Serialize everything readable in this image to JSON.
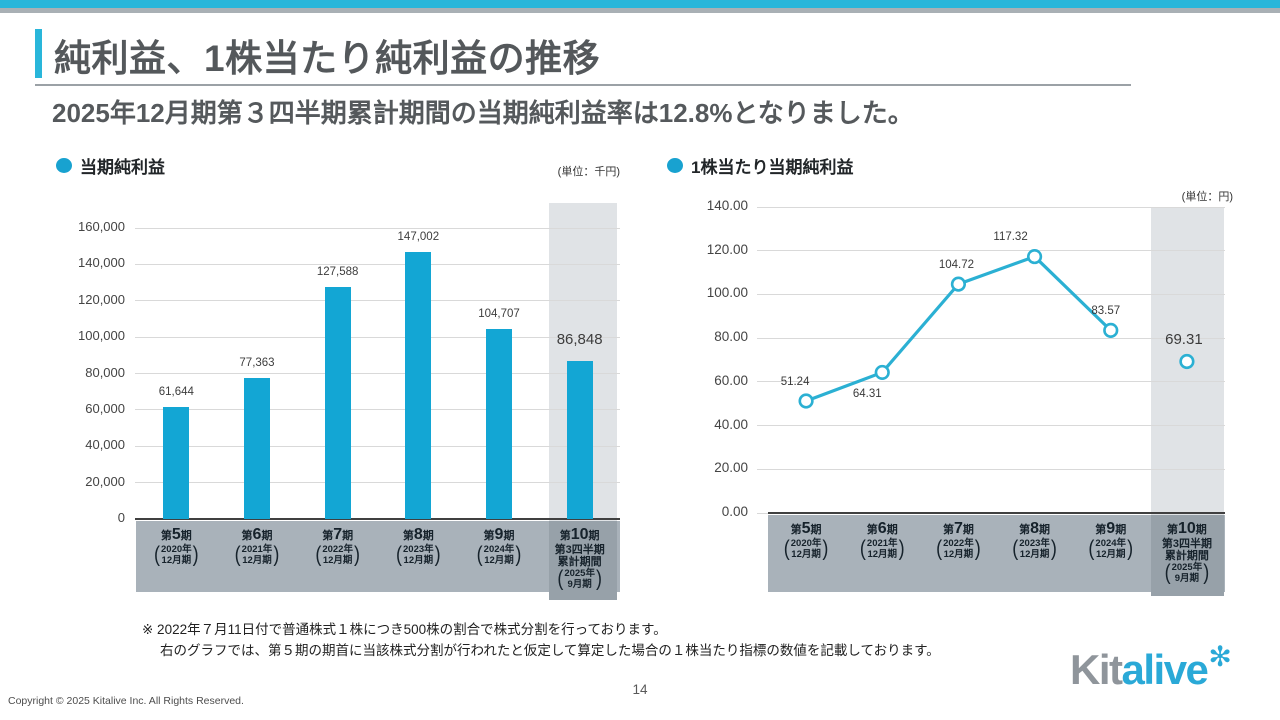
{
  "header": {
    "title": "純利益、1株当たり純利益の推移",
    "subtitle": "2025年12月期第３四半期累計期間の当期純利益率は12.8%となりました。"
  },
  "colors": {
    "accent_cyan": "#29b6da",
    "legend_dot": "#18a2d0",
    "bar": "#13a6d4",
    "line": "#2bb0d3",
    "band": "#a9b2ba",
    "band_dark": "#97a1a9",
    "highlight": "#e0e3e6",
    "grid": "#d9d9d9",
    "axis": "#404040"
  },
  "chart_data": [
    {
      "type": "bar",
      "title": "当期純利益",
      "unit_label": "(単位：千円)",
      "categories": [
        {
          "term": "第5期",
          "year": "2020年",
          "month": "12月期"
        },
        {
          "term": "第6期",
          "year": "2021年",
          "month": "12月期"
        },
        {
          "term": "第7期",
          "year": "2022年",
          "month": "12月期"
        },
        {
          "term": "第8期",
          "year": "2023年",
          "month": "12月期"
        },
        {
          "term": "第9期",
          "year": "2024年",
          "month": "12月期"
        },
        {
          "term": "第10期",
          "sub": [
            "第3四半期",
            "累計期間"
          ],
          "year": "2025年",
          "month": "9月期",
          "highlight": true
        }
      ],
      "values": [
        61644,
        77363,
        127588,
        147002,
        104707,
        86848
      ],
      "value_labels": [
        "61,644",
        "77,363",
        "127,588",
        "147,002",
        "104,707",
        "86,848"
      ],
      "ylim": [
        0,
        160000
      ],
      "yticks": [
        "0",
        "20,000",
        "40,000",
        "60,000",
        "80,000",
        "100,000",
        "120,000",
        "140,000",
        "160,000"
      ],
      "grid": true,
      "highlight_last": true
    },
    {
      "type": "line",
      "title": "1株当たり当期純利益",
      "unit_label": "(単位：円)",
      "categories": [
        {
          "term": "第5期",
          "year": "2020年",
          "month": "12月期"
        },
        {
          "term": "第6期",
          "year": "2021年",
          "month": "12月期"
        },
        {
          "term": "第7期",
          "year": "2022年",
          "month": "12月期"
        },
        {
          "term": "第8期",
          "year": "2023年",
          "month": "12月期"
        },
        {
          "term": "第9期",
          "year": "2024年",
          "month": "12月期"
        },
        {
          "term": "第10期",
          "sub": [
            "第3四半期",
            "累計期間"
          ],
          "year": "2025年",
          "month": "9月期",
          "highlight": true
        }
      ],
      "values": [
        51.24,
        64.31,
        104.72,
        117.32,
        83.57,
        69.31
      ],
      "value_labels": [
        "51.24",
        "64.31",
        "104.72",
        "117.32",
        "83.57",
        "69.31"
      ],
      "ylim": [
        0,
        140
      ],
      "yticks": [
        "0.00",
        "20.00",
        "40.00",
        "60.00",
        "80.00",
        "100.00",
        "120.00",
        "140.00"
      ],
      "grid": true,
      "highlight_last": true,
      "isolated_last_point": true
    }
  ],
  "footnote": {
    "line1": "※ 2022年７月11日付で普通株式１株につき500株の割合で株式分割を行っております。",
    "line2": "右のグラフでは、第５期の期首に当該株式分割が行われたと仮定して算定した場合の１株当たり指標の数値を記載しております。"
  },
  "footer": {
    "copyright": "Copyright © 2025 Kitalive Inc. All Rights Reserved.",
    "page_number": "14"
  },
  "logo": {
    "text_gray": "Kit",
    "text_cyan": "alive",
    "mark": "✻"
  }
}
